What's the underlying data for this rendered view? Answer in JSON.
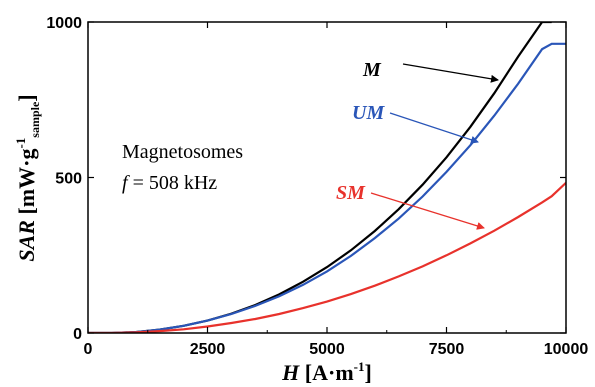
{
  "chart_data": {
    "type": "line",
    "xlabel": {
      "var": "H",
      "units": "[A·m",
      "units_sup": "-1",
      "units_end": "]"
    },
    "ylabel": {
      "var": "SAR",
      "units": "[mW·g",
      "units_sup": "-1",
      "units_sub": "sample",
      "units_end": "]"
    },
    "xlim": [
      0,
      10000
    ],
    "ylim": [
      0,
      1000
    ],
    "xticks": [
      0,
      2500,
      5000,
      7500,
      10000
    ],
    "yticks": [
      0,
      500,
      1000
    ],
    "grid": false,
    "x": [
      0,
      500,
      1000,
      1500,
      2000,
      2500,
      3000,
      3500,
      4000,
      4500,
      5000,
      5500,
      6000,
      6500,
      7000,
      7500,
      8000,
      8500,
      9000,
      9500,
      9700,
      10000
    ],
    "series": [
      {
        "name": "M",
        "color": "#000000",
        "values": [
          0,
          0,
          3,
          11,
          23,
          40,
          62,
          90,
          124,
          165,
          212,
          266,
          328,
          398,
          477,
          565,
          663,
          771,
          889,
          1000,
          1000,
          null
        ]
      },
      {
        "name": "UM",
        "color": "#2a56b8",
        "values": [
          0,
          0,
          3,
          11,
          23,
          40,
          61,
          87,
          118,
          155,
          198,
          248,
          305,
          368,
          439,
          518,
          604,
          699,
          802,
          913,
          930,
          930
        ]
      },
      {
        "name": "SM",
        "color": "#e8322c",
        "values": [
          0,
          0,
          2,
          6,
          12,
          21,
          32,
          45,
          61,
          80,
          101,
          125,
          152,
          182,
          214,
          250,
          288,
          329,
          373,
          420,
          440,
          483
        ]
      }
    ],
    "series_labels": [
      "M",
      "UM",
      "SM"
    ],
    "annotation_lines": [
      "Magnetosomes",
      "f = 508 kHz"
    ]
  }
}
